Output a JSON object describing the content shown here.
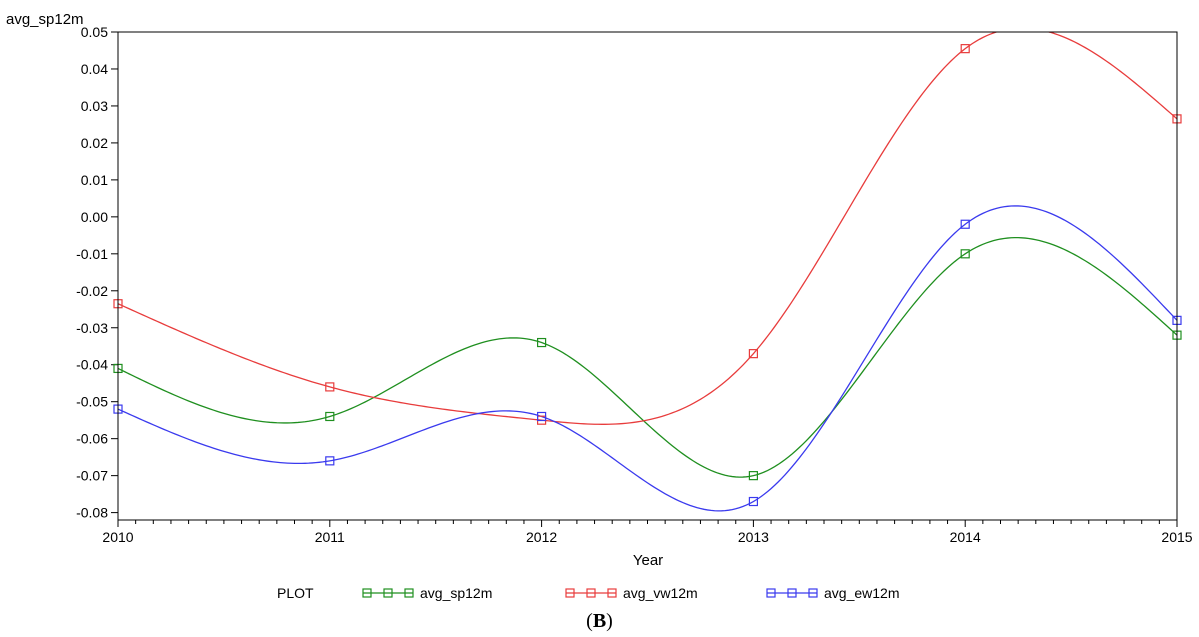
{
  "chart_data": {
    "type": "line",
    "y_axis_label": "avg_sp12m",
    "x_axis_label": "Year",
    "x_ticks": [
      "2010",
      "2011",
      "2012",
      "2013",
      "2014",
      "2015"
    ],
    "y_ticks": [
      "0.05",
      "0.04",
      "0.03",
      "0.02",
      "0.01",
      "0.00",
      "-0.01",
      "-0.02",
      "-0.03",
      "-0.04",
      "-0.05",
      "-0.06",
      "-0.07",
      "-0.08"
    ],
    "xlim": [
      2010,
      2015
    ],
    "ylim": [
      -0.082,
      0.05
    ],
    "grid": false,
    "marker": "square",
    "legend": {
      "title": "PLOT",
      "placement": "bottom"
    },
    "series": [
      {
        "name": "avg_sp12m",
        "color": "#1f8f1f",
        "x": [
          2010,
          2011,
          2012,
          2013,
          2014,
          2015
        ],
        "y": [
          -0.041,
          -0.054,
          -0.034,
          -0.07,
          -0.01,
          -0.032
        ]
      },
      {
        "name": "avg_vw12m",
        "color": "#e83c3c",
        "x": [
          2010,
          2011,
          2012,
          2013,
          2014,
          2015
        ],
        "y": [
          -0.0235,
          -0.046,
          -0.055,
          -0.037,
          0.0455,
          0.0265
        ]
      },
      {
        "name": "avg_ew12m",
        "color": "#3a3aee",
        "x": [
          2010,
          2011,
          2012,
          2013,
          2014,
          2015
        ],
        "y": [
          -0.052,
          -0.066,
          -0.054,
          -0.077,
          -0.002,
          -0.028
        ]
      }
    ]
  },
  "caption": {
    "open": "(",
    "letter": "B",
    "close": ")"
  }
}
